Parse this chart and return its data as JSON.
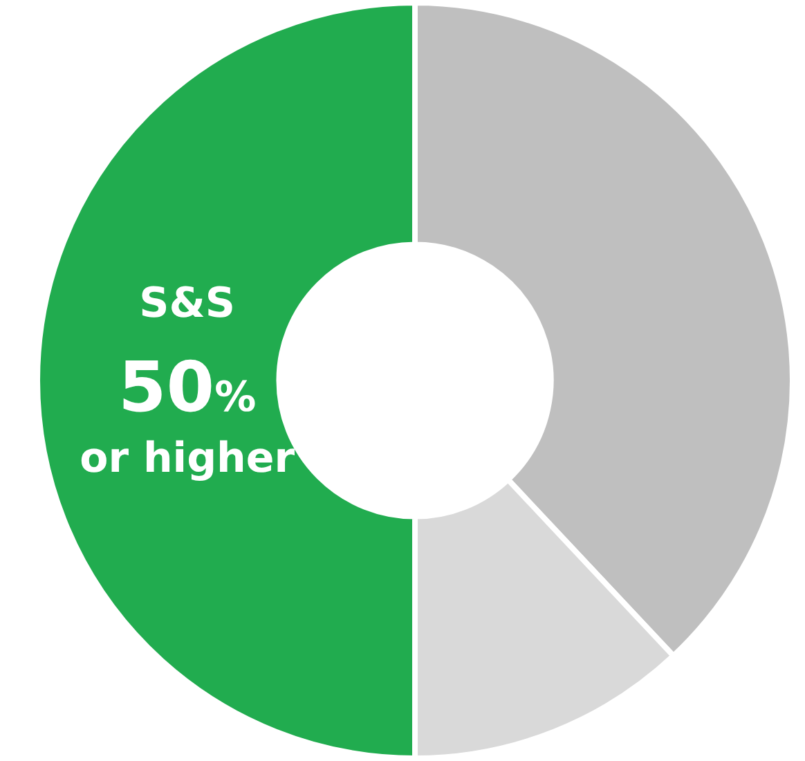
{
  "chart_data": {
    "type": "donut",
    "categories": [
      null,
      null,
      "S&S"
    ],
    "values": [
      38,
      12,
      50
    ],
    "colors": [
      "#bfbfbf",
      "#d9d9d9",
      "#21ac4f"
    ],
    "value_labels": [
      null,
      null,
      "50%"
    ],
    "annotations": [
      "or higher"
    ],
    "legend": false
  }
}
